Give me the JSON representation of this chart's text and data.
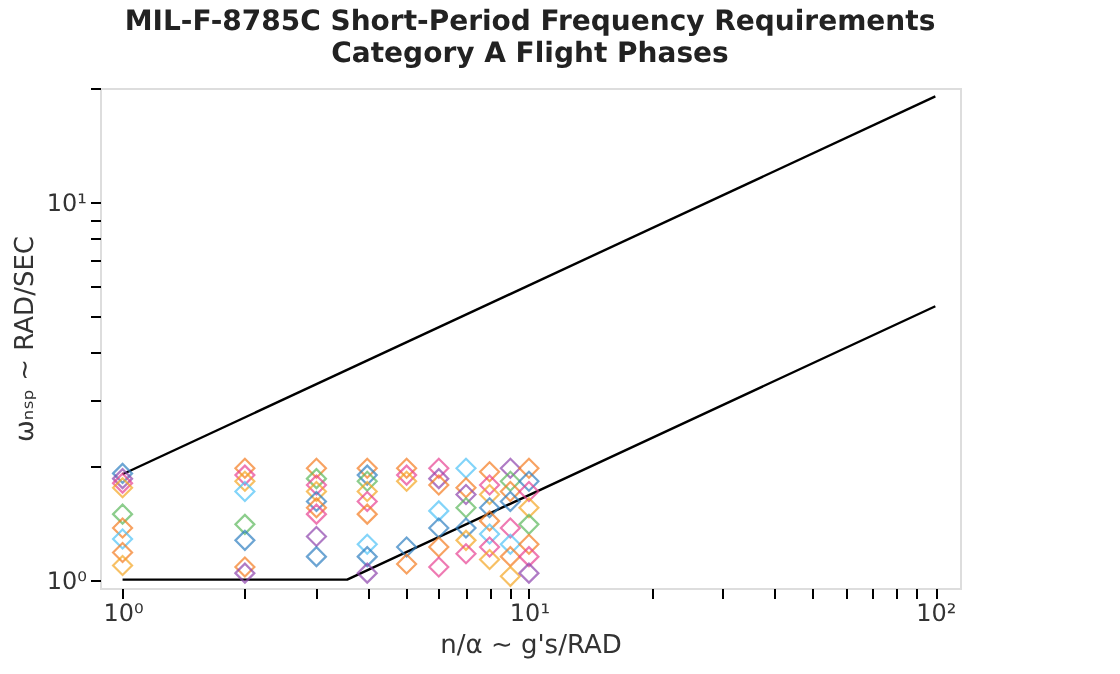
{
  "chart_data": {
    "type": "scatter",
    "title": [
      "MIL-F-8785C Short-Period Frequency Requirements",
      "Category A Flight Phases"
    ],
    "xlabel": "n/α ~ g's/RAD",
    "ylabel": "ωₙₛₚ ~ RAD/SEC",
    "log": "xy",
    "grid": false,
    "xlim": [
      0.88,
      115
    ],
    "ylim": [
      0.95,
      20
    ],
    "xticks": [
      {
        "value": 1,
        "label": "10⁰"
      },
      {
        "value": 2,
        "label": null
      },
      {
        "value": 3,
        "label": null
      },
      {
        "value": 4,
        "label": null
      },
      {
        "value": 5,
        "label": null
      },
      {
        "value": 6,
        "label": null
      },
      {
        "value": 7,
        "label": null
      },
      {
        "value": 8,
        "label": null
      },
      {
        "value": 9,
        "label": null
      },
      {
        "value": 10,
        "label": "10¹"
      },
      {
        "value": 20,
        "label": null
      },
      {
        "value": 30,
        "label": null
      },
      {
        "value": 40,
        "label": null
      },
      {
        "value": 50,
        "label": null
      },
      {
        "value": 60,
        "label": null
      },
      {
        "value": 70,
        "label": null
      },
      {
        "value": 80,
        "label": null
      },
      {
        "value": 90,
        "label": null
      },
      {
        "value": 100,
        "label": "10²"
      }
    ],
    "yticks": [
      {
        "value": 1,
        "label": "10⁰"
      },
      {
        "value": 2,
        "label": null
      },
      {
        "value": 3,
        "label": null
      },
      {
        "value": 4,
        "label": null
      },
      {
        "value": 5,
        "label": null
      },
      {
        "value": 6,
        "label": null
      },
      {
        "value": 7,
        "label": null
      },
      {
        "value": 8,
        "label": null
      },
      {
        "value": 9,
        "label": null
      },
      {
        "value": 10,
        "label": "10¹"
      },
      {
        "value": 20,
        "label": null
      }
    ],
    "series": [
      {
        "type": "line",
        "line_style": "solid",
        "color": "#000000",
        "x": [
          1,
          100
        ],
        "values": [
          1.9,
          19
        ]
      },
      {
        "type": "line",
        "line_style": "solid",
        "color": "#000000",
        "x": [
          1,
          3.57,
          100
        ],
        "values": [
          1.0,
          1.0,
          5.29
        ]
      },
      {
        "marker": "diamond",
        "x": [
          1,
          1,
          1,
          1,
          1,
          1,
          1,
          1,
          1,
          2,
          2,
          2,
          2,
          2,
          2,
          2,
          2,
          3,
          3,
          3,
          3,
          3,
          3,
          3,
          3,
          3,
          4,
          4,
          4,
          4,
          4,
          4,
          4,
          4,
          4,
          5,
          5,
          5,
          5,
          5,
          6,
          6,
          6,
          6,
          6,
          6,
          6,
          7,
          7,
          7,
          7,
          7,
          7,
          7,
          8,
          8,
          8,
          8,
          8,
          8,
          8,
          8,
          9,
          9,
          9,
          9,
          9,
          9,
          9,
          9,
          10,
          10,
          10,
          10,
          10,
          10,
          10,
          10
        ],
        "values": [
          1.91,
          1.85,
          1.8,
          1.75,
          1.49,
          1.37,
          1.28,
          1.18,
          1.09,
          1.97,
          1.89,
          1.82,
          1.71,
          1.4,
          1.27,
          1.08,
          1.04,
          1.97,
          1.85,
          1.78,
          1.71,
          1.61,
          1.55,
          1.49,
          1.3,
          1.15,
          1.97,
          1.89,
          1.82,
          1.71,
          1.61,
          1.49,
          1.24,
          1.15,
          1.04,
          1.97,
          1.89,
          1.82,
          1.22,
          1.1,
          1.97,
          1.85,
          1.78,
          1.52,
          1.37,
          1.22,
          1.08,
          1.97,
          1.75,
          1.68,
          1.55,
          1.37,
          1.27,
          1.17,
          1.93,
          1.78,
          1.68,
          1.55,
          1.43,
          1.32,
          1.22,
          1.13,
          1.97,
          1.82,
          1.71,
          1.61,
          1.37,
          1.24,
          1.15,
          1.02,
          1.97,
          1.82,
          1.71,
          1.55,
          1.4,
          1.24,
          1.15,
          1.04
        ],
        "colors": [
          "#2f7fc1",
          "#8e44ad",
          "#e84393",
          "#f5a623",
          "#5cb85c",
          "#f57c20",
          "#4fc3f7",
          "#f57c20",
          "#f5a623",
          "#f57c20",
          "#e84393",
          "#f5a623",
          "#4fc3f7",
          "#5cb85c",
          "#2f7fc1",
          "#f57c20",
          "#8e44ad",
          "#f57c20",
          "#5cb85c",
          "#e84393",
          "#f5a623",
          "#2f7fc1",
          "#f57c20",
          "#e84393",
          "#8e44ad",
          "#2f7fc1",
          "#f57c20",
          "#2f7fc1",
          "#5cb85c",
          "#f5a623",
          "#e84393",
          "#f57c20",
          "#4fc3f7",
          "#2f7fc1",
          "#8e44ad",
          "#f57c20",
          "#e84393",
          "#f5a623",
          "#2f7fc1",
          "#f57c20",
          "#e84393",
          "#8e44ad",
          "#f57c20",
          "#4fc3f7",
          "#2f7fc1",
          "#f57c20",
          "#e84393",
          "#4fc3f7",
          "#f57c20",
          "#8e44ad",
          "#5cb85c",
          "#2f7fc1",
          "#f5a623",
          "#e84393",
          "#f57c20",
          "#e84393",
          "#f5a623",
          "#2f7fc1",
          "#f57c20",
          "#4fc3f7",
          "#e84393",
          "#f5a623",
          "#8e44ad",
          "#5cb85c",
          "#f57c20",
          "#2f7fc1",
          "#e84393",
          "#4fc3f7",
          "#f57c20",
          "#f5a623",
          "#f57c20",
          "#2f7fc1",
          "#e84393",
          "#f5a623",
          "#5cb85c",
          "#f57c20",
          "#e84393",
          "#8e44ad"
        ]
      }
    ]
  }
}
